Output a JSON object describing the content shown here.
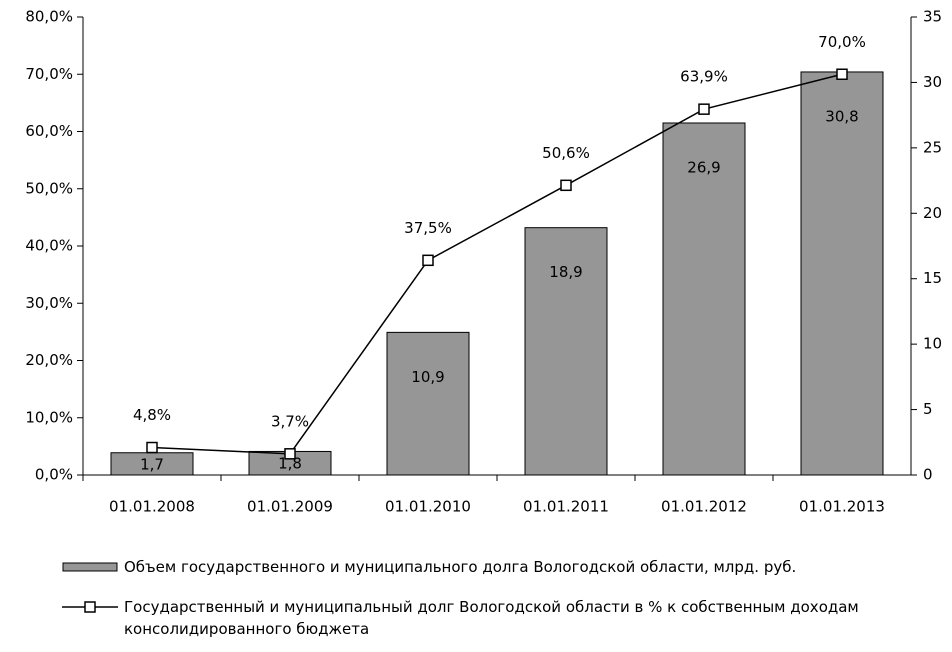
{
  "chart_data": {
    "type": "bar_line",
    "categories": [
      "01.01.2008",
      "01.01.2009",
      "01.01.2010",
      "01.01.2011",
      "01.01.2012",
      "01.01.2013"
    ],
    "series": [
      {
        "name": "Объем государственного и муниципального долга Вологодской области, млрд. руб.",
        "type": "bar",
        "axis": "y2",
        "color": "#969696",
        "values": [
          1.7,
          1.8,
          10.9,
          18.9,
          26.9,
          30.8
        ],
        "value_labels": [
          "1,7",
          "1,8",
          "10,9",
          "18,9",
          "26,9",
          "30,8"
        ]
      },
      {
        "name": "Государственный и муниципальный долг Вологодской области в % к собственным доходам консолидированного бюджета",
        "type": "line",
        "axis": "y",
        "color": "#000000",
        "values": [
          4.8,
          3.7,
          37.5,
          50.6,
          63.9,
          70.0
        ],
        "value_labels": [
          "4,8%",
          "3,7%",
          "37,5%",
          "50,6%",
          "63,9%",
          "70,0%"
        ]
      }
    ],
    "ylim": [
      0,
      80
    ],
    "yticks": [
      {
        "value": 0,
        "label": "0,0%"
      },
      {
        "value": 10,
        "label": "10,0%"
      },
      {
        "value": 20,
        "label": "20,0%"
      },
      {
        "value": 30,
        "label": "30,0%"
      },
      {
        "value": 40,
        "label": "40,0%"
      },
      {
        "value": 50,
        "label": "50,0%"
      },
      {
        "value": 60,
        "label": "60,0%"
      },
      {
        "value": 70,
        "label": "70,0%"
      },
      {
        "value": 80,
        "label": "80,0%"
      }
    ],
    "y2lim": [
      0,
      35
    ],
    "y2ticks": [
      0,
      5,
      10,
      15,
      20,
      25,
      30,
      35
    ]
  }
}
